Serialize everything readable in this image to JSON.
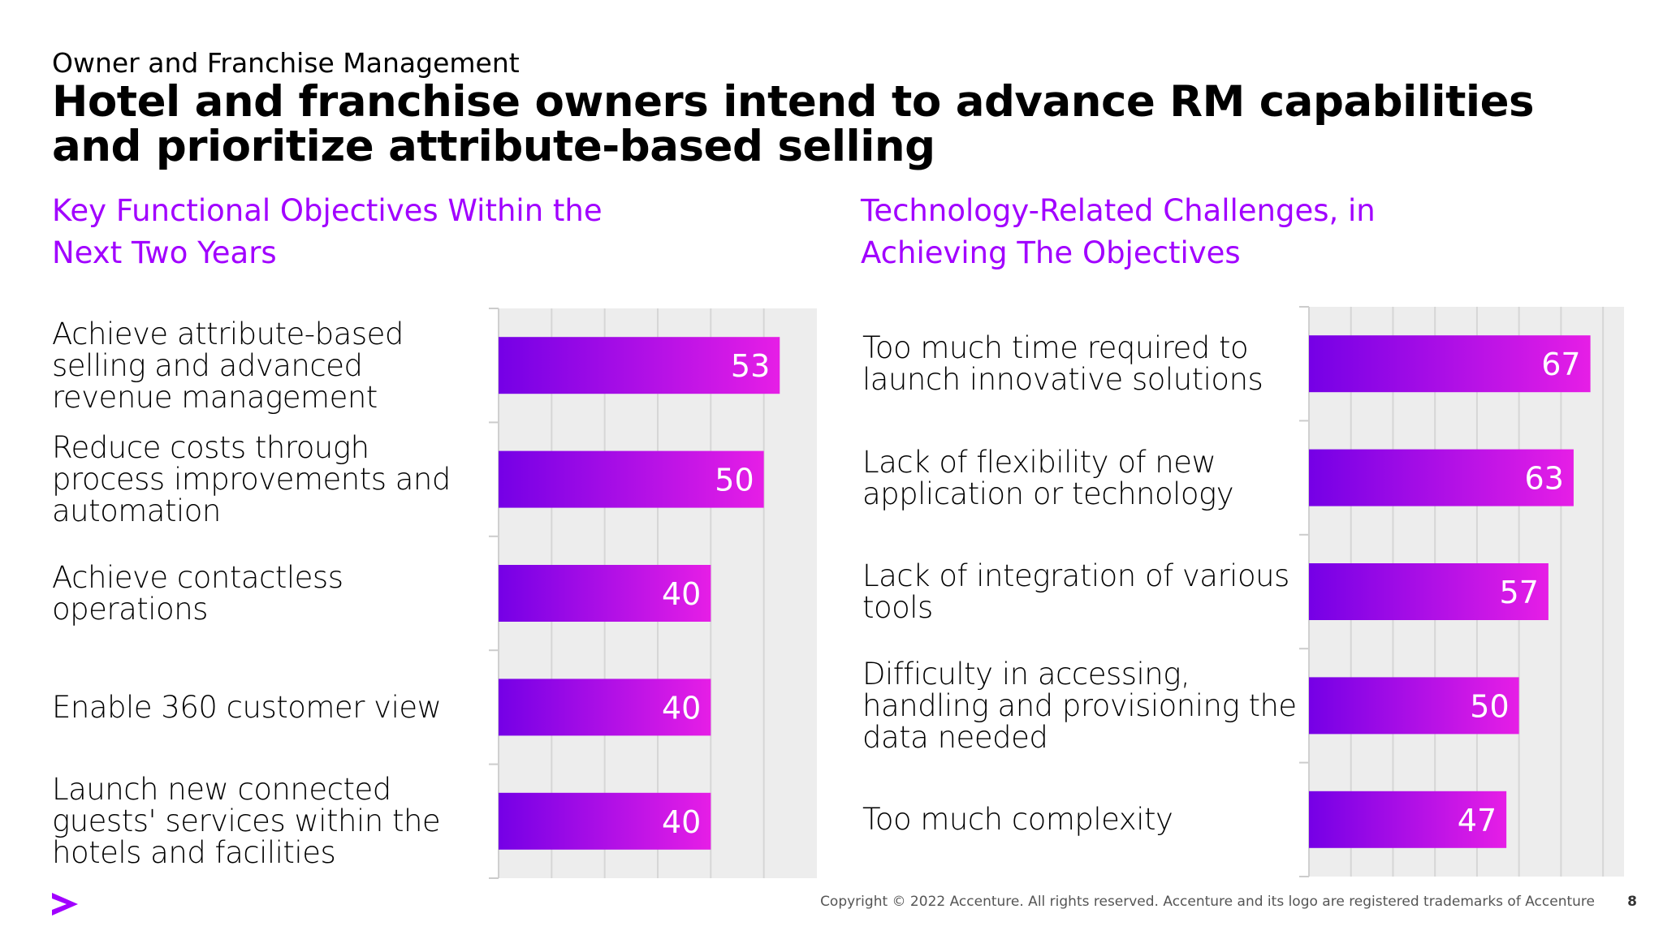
{
  "header": {
    "eyebrow": "Owner and Franchise Management",
    "headline": "Hotel and franchise owners intend to advance RM capabilities and prioritize attribute-based selling"
  },
  "chart_data": [
    {
      "type": "bar",
      "orientation": "horizontal",
      "title": "Key Functional Objectives Within the Next Two Years",
      "categories": [
        "Achieve attribute-based selling and advanced revenue management",
        "Reduce costs through process improvements and automation",
        "Achieve contactless operations",
        "Enable 360 customer view",
        "Launch new connected guests' services within the hotels and facilities"
      ],
      "values": [
        53,
        50,
        40,
        40,
        40
      ],
      "xlim": [
        0,
        60
      ],
      "grid": true,
      "data_labels": true
    },
    {
      "type": "bar",
      "orientation": "horizontal",
      "title": "Technology-Related Challenges, in Achieving The Objectives",
      "categories": [
        "Too much time required to launch innovative solutions",
        "Lack of flexibility of new application or technology",
        "Lack of integration of various tools",
        "Difficulty in accessing, handling and provisioning the data needed",
        "Too much complexity"
      ],
      "values": [
        67,
        63,
        57,
        50,
        47
      ],
      "xlim": [
        0,
        75
      ],
      "grid": true,
      "data_labels": true
    }
  ],
  "colors": {
    "accent": "#a100ff",
    "bar_start": "#7500e6",
    "bar_end": "#e61ee6",
    "plot_background": "#ededed",
    "gridline": "#d6d6d6"
  },
  "footer": {
    "logo_icon": "accenture-chevron-icon",
    "copyright": "Copyright © 2022 Accenture. All rights reserved. Accenture and its logo are registered trademarks of Accenture",
    "page_number": "8"
  }
}
